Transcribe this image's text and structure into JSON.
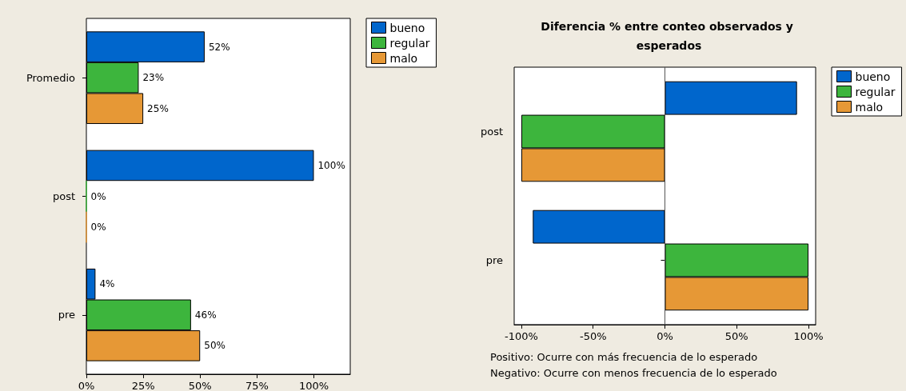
{
  "chart_data": [
    {
      "type": "bar",
      "orientation": "horizontal",
      "categories": [
        "Promedio",
        "post",
        "pre"
      ],
      "series": [
        {
          "name": "bueno",
          "color": "#0066cc",
          "values": [
            52,
            100,
            4
          ],
          "value_labels": [
            "52%",
            "100%",
            "4%"
          ]
        },
        {
          "name": "regular",
          "color": "#3db53d",
          "values": [
            23,
            0,
            46
          ],
          "value_labels": [
            "23%",
            "0%",
            "46%"
          ]
        },
        {
          "name": "malo",
          "color": "#e69836",
          "values": [
            25,
            0,
            50
          ],
          "value_labels": [
            "25%",
            "0%",
            "50%"
          ]
        }
      ],
      "xlim": [
        0,
        116
      ],
      "xticks": [
        {
          "value": 0,
          "label": "0%"
        },
        {
          "value": 25,
          "label": "25%"
        },
        {
          "value": 50,
          "label": "50%"
        },
        {
          "value": 75,
          "label": "75%"
        },
        {
          "value": 100,
          "label": "100%"
        }
      ],
      "grid": false,
      "legend": "top right"
    },
    {
      "type": "bar",
      "orientation": "horizontal",
      "title": "Diferencia % entre conteo observados y esperados",
      "categories": [
        "post",
        "pre"
      ],
      "series": [
        {
          "name": "bueno",
          "color": "#0066cc",
          "values": [
            92,
            -92
          ]
        },
        {
          "name": "regular",
          "color": "#3db53d",
          "values": [
            -100,
            100
          ]
        },
        {
          "name": "malo",
          "color": "#e69836",
          "values": [
            -100,
            100
          ]
        }
      ],
      "xlim": [
        -105,
        105
      ],
      "xticks": [
        {
          "value": -100,
          "label": "-100%"
        },
        {
          "value": -50,
          "label": "-50%"
        },
        {
          "value": 0,
          "label": "0%"
        },
        {
          "value": 50,
          "label": "50%"
        },
        {
          "value": 100,
          "label": "100%"
        }
      ],
      "grid": false,
      "legend": "top right",
      "ref_lines": [
        {
          "axis": "x",
          "value": 0,
          "color": "#555555"
        }
      ],
      "annotations": [
        "Positivo: Ocurre con más frecuencia de lo esperado",
        "Negativo: Ocurre con menos frecuencia de lo esperado"
      ]
    }
  ]
}
